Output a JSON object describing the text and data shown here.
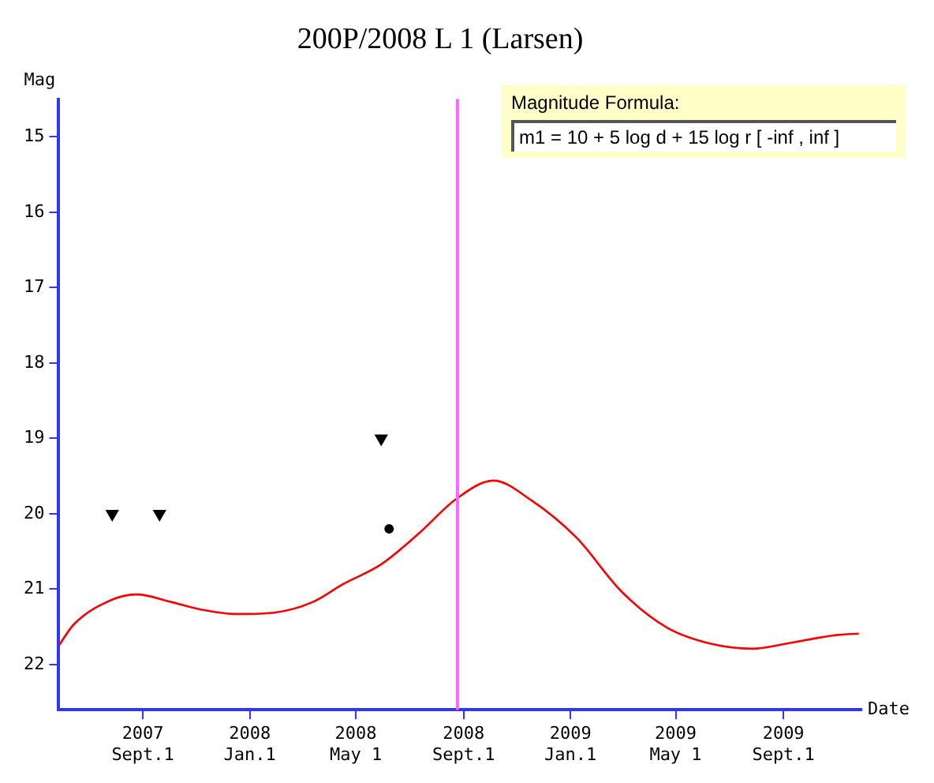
{
  "chart_data": {
    "type": "line",
    "title": "200P/2008 L 1 (Larsen)",
    "xlabel": "Date",
    "ylabel": "Mag",
    "xlim": [
      "2007-05-28",
      "2009-11-29"
    ],
    "ylim": [
      22.6,
      14.5
    ],
    "xticks": [
      {
        "value": "2007-09-01",
        "label": "2007 Sept.1"
      },
      {
        "value": "2008-01-01",
        "label": "2008 Jan.1"
      },
      {
        "value": "2008-05-01",
        "label": "2008 May 1"
      },
      {
        "value": "2008-09-01",
        "label": "2008 Sept.1"
      },
      {
        "value": "2009-01-01",
        "label": "2009 Jan.1"
      },
      {
        "value": "2009-05-01",
        "label": "2009 May 1"
      },
      {
        "value": "2009-09-01",
        "label": "2009 Sept.1"
      }
    ],
    "yticks": [
      15,
      16,
      17,
      18,
      19,
      20,
      21,
      22
    ],
    "series": [
      {
        "type": "line",
        "color": "#ff0000",
        "marker": "none",
        "x": [
          "2007-05-28",
          "2007-06-14",
          "2007-07-30",
          "2007-08-25",
          "2007-10-03",
          "2007-11-06",
          "2007-12-18",
          "2008-01-30",
          "2008-03-13",
          "2008-04-17",
          "2008-05-30",
          "2008-07-12",
          "2008-08-24",
          "2008-10-05",
          "2008-11-17",
          "2009-01-08",
          "2009-02-28",
          "2009-04-21",
          "2009-06-12",
          "2009-07-27",
          "2009-09-10",
          "2009-10-31",
          "2009-11-26"
        ],
        "values": [
          21.75,
          21.47,
          21.13,
          21.07,
          21.17,
          21.27,
          21.33,
          21.31,
          21.17,
          20.93,
          20.67,
          20.26,
          19.8,
          19.56,
          19.82,
          20.32,
          21.03,
          21.51,
          21.73,
          21.79,
          21.71,
          21.61,
          21.59
        ]
      },
      {
        "type": "scatter",
        "color": "#000000",
        "marker": "triangle",
        "x": [
          "2007-07-28",
          "2007-09-20",
          "2008-05-30"
        ],
        "values": [
          20,
          20,
          19
        ]
      },
      {
        "type": "scatter",
        "color": "#000000",
        "marker": "circle",
        "x": [
          "2008-06-08"
        ],
        "values": [
          20.2
        ]
      }
    ],
    "ref_lines": [
      {
        "axis": "x",
        "value": "2008-08-25",
        "color": "#ff66ff"
      }
    ],
    "annotations": [
      "Magnitude Formula:",
      "m1 = 10 + 5 log d + 15 log r [ -inf , inf ]"
    ]
  }
}
